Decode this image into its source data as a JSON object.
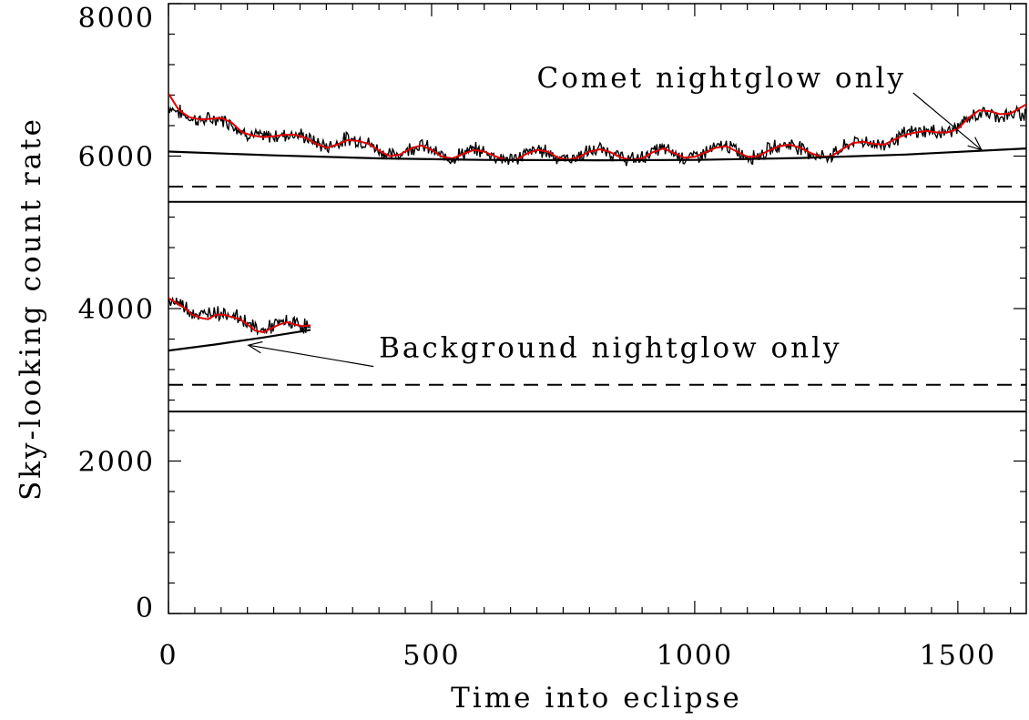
{
  "chart_data": {
    "type": "line",
    "xlabel": "Time into eclipse",
    "ylabel": "Sky-looking count rate",
    "xlim": [
      0,
      1630
    ],
    "ylim": [
      0,
      8000
    ],
    "x_ticks": [
      0,
      500,
      1000,
      1500
    ],
    "y_ticks": [
      0,
      2000,
      4000,
      6000,
      8000
    ],
    "x_tick_labels": [
      "0",
      "500",
      "1000",
      "1500"
    ],
    "y_tick_labels": [
      "0",
      "2000",
      "4000",
      "6000",
      "8000"
    ],
    "x_minor_step": 50,
    "y_minor_step": 400,
    "grid": false,
    "colors": {
      "data": "#000000",
      "fit": "#e00000",
      "model": "#000000"
    },
    "series": [
      {
        "role": "observed",
        "x": [
          0,
          20,
          40,
          60,
          80,
          100,
          120,
          140,
          160,
          180,
          200,
          220,
          240,
          260,
          280,
          300,
          320,
          340,
          360,
          380,
          400,
          420,
          440,
          460,
          480,
          500,
          520,
          540,
          560,
          580,
          600,
          620,
          640,
          660,
          680,
          700,
          720,
          740,
          760,
          780,
          800,
          820,
          840,
          860,
          880,
          900,
          920,
          940,
          960,
          980,
          1000,
          1020,
          1040,
          1060,
          1080,
          1100,
          1120,
          1140,
          1160,
          1180,
          1200,
          1220,
          1240,
          1260,
          1280,
          1300,
          1320,
          1340,
          1360,
          1380,
          1400,
          1420,
          1440,
          1460,
          1480,
          1500,
          1520,
          1540,
          1560,
          1580,
          1600,
          1630
        ],
        "y": [
          6650,
          6580,
          6500,
          6470,
          6480,
          6490,
          6430,
          6320,
          6280,
          6250,
          6260,
          6280,
          6290,
          6250,
          6180,
          6120,
          6170,
          6230,
          6210,
          6170,
          6080,
          6010,
          6030,
          6110,
          6150,
          6080,
          5990,
          5980,
          6040,
          6080,
          6060,
          6000,
          5960,
          5960,
          6040,
          6080,
          6060,
          5980,
          5960,
          6000,
          6060,
          6090,
          6050,
          5980,
          5950,
          5980,
          6060,
          6100,
          6040,
          5980,
          5990,
          6050,
          6110,
          6140,
          6070,
          5990,
          6010,
          6080,
          6140,
          6160,
          6120,
          6040,
          5990,
          6010,
          6100,
          6180,
          6200,
          6160,
          6150,
          6220,
          6290,
          6320,
          6330,
          6310,
          6320,
          6380,
          6480,
          6560,
          6560,
          6520,
          6540,
          6560
        ]
      },
      {
        "role": "smoothed",
        "x": [
          0,
          20,
          40,
          60,
          80,
          100,
          120,
          140,
          160,
          180,
          200,
          220,
          240,
          260,
          280,
          300,
          320,
          340,
          360,
          380,
          400,
          420,
          440,
          460,
          480,
          500,
          520,
          540,
          560,
          580,
          600,
          620,
          640,
          660,
          680,
          700,
          720,
          740,
          760,
          780,
          800,
          820,
          840,
          860,
          880,
          900,
          920,
          940,
          960,
          980,
          1000,
          1020,
          1040,
          1060,
          1080,
          1100,
          1120,
          1140,
          1160,
          1180,
          1200,
          1220,
          1240,
          1260,
          1280,
          1300,
          1320,
          1340,
          1360,
          1380,
          1400,
          1420,
          1440,
          1460,
          1480,
          1500,
          1520,
          1540,
          1560,
          1580,
          1600,
          1630
        ],
        "y": [
          6820,
          6600,
          6510,
          6480,
          6490,
          6500,
          6440,
          6310,
          6270,
          6250,
          6260,
          6280,
          6280,
          6240,
          6160,
          6110,
          6150,
          6210,
          6200,
          6160,
          6070,
          6000,
          6020,
          6100,
          6140,
          6080,
          5990,
          5970,
          6030,
          6080,
          6060,
          6000,
          5950,
          5950,
          6030,
          6080,
          6060,
          5980,
          5950,
          5990,
          6060,
          6090,
          6050,
          5980,
          5950,
          5970,
          6050,
          6100,
          6040,
          5980,
          5990,
          6050,
          6110,
          6130,
          6060,
          5990,
          6000,
          6070,
          6130,
          6150,
          6110,
          6040,
          5990,
          6000,
          6090,
          6170,
          6190,
          6160,
          6150,
          6220,
          6280,
          6310,
          6330,
          6310,
          6310,
          6360,
          6500,
          6600,
          6590,
          6550,
          6560,
          6680
        ]
      },
      {
        "role": "observed",
        "x": [
          0,
          15,
          30,
          45,
          60,
          75,
          90,
          105,
          120,
          135,
          150,
          165,
          180,
          195,
          210,
          225,
          240,
          255,
          270
        ],
        "y": [
          4130,
          4080,
          4040,
          3960,
          3890,
          3950,
          3960,
          3940,
          3920,
          3880,
          3820,
          3740,
          3710,
          3760,
          3800,
          3830,
          3800,
          3780,
          3750
        ]
      },
      {
        "role": "smoothed",
        "x": [
          0,
          15,
          30,
          45,
          60,
          75,
          90,
          105,
          120,
          135,
          150,
          165,
          180,
          195,
          210,
          225,
          240,
          255,
          270
        ],
        "y": [
          4140,
          4070,
          4010,
          3920,
          3880,
          3860,
          3920,
          3920,
          3890,
          3860,
          3790,
          3710,
          3690,
          3740,
          3790,
          3820,
          3790,
          3770,
          3780
        ]
      },
      {
        "role": "model-curve",
        "x": [
          0,
          200,
          400,
          600,
          815,
          1000,
          1200,
          1400,
          1630
        ],
        "y": [
          6060,
          6010,
          5970,
          5950,
          5945,
          5950,
          5975,
          6020,
          6100
        ]
      },
      {
        "role": "model-curve",
        "x": [
          0,
          90,
          180,
          270
        ],
        "y": [
          3450,
          3530,
          3620,
          3720
        ]
      },
      {
        "role": "level-dashed",
        "x": [
          0,
          1630
        ],
        "y": [
          5600,
          5600
        ]
      },
      {
        "role": "level-solid",
        "x": [
          0,
          1630
        ],
        "y": [
          5400,
          5400
        ]
      },
      {
        "role": "level-dashed",
        "x": [
          0,
          1630
        ],
        "y": [
          3000,
          3000
        ]
      },
      {
        "role": "level-solid",
        "x": [
          0,
          1630
        ],
        "y": [
          2650,
          2650
        ]
      }
    ],
    "annotations": [
      {
        "text": "Comet nightglow only",
        "anchor": [
          700,
          6900
        ],
        "arrow_to": [
          1545,
          6080
        ]
      },
      {
        "text": "Background nightglow only",
        "anchor": [
          400,
          3360
        ],
        "arrow_to": [
          152,
          3520
        ]
      }
    ]
  }
}
